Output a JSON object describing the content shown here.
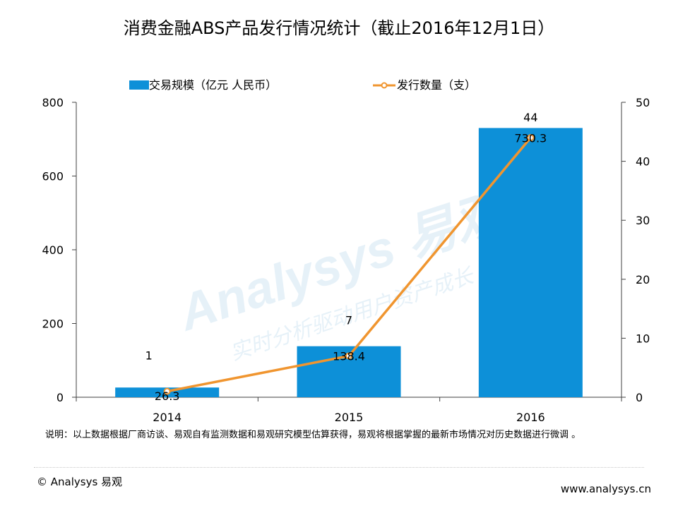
{
  "title": "消费金融ABS产品发行情况统计（截止2016年12月1日）",
  "chart_data": {
    "type": "bar+line",
    "categories": [
      "2014",
      "2015",
      "2016"
    ],
    "series": [
      {
        "name": "交易规模（亿元 人民币）",
        "type": "bar",
        "axis": "left",
        "values": [
          26.3,
          138.4,
          730.3
        ],
        "color": "#0d90d8",
        "labels": [
          "26.3",
          "138.4",
          "730.3"
        ]
      },
      {
        "name": "发行数量（支）",
        "type": "line",
        "axis": "right",
        "values": [
          1,
          7,
          44
        ],
        "color": "#f0952f",
        "labels": [
          "1",
          "7",
          "44"
        ]
      }
    ],
    "y_left": {
      "min": 0,
      "max": 800,
      "ticks": [
        "0",
        "200",
        "400",
        "600",
        "800"
      ]
    },
    "y_right": {
      "min": 0,
      "max": 50,
      "ticks": [
        "0",
        "10",
        "20",
        "30",
        "40",
        "50"
      ]
    },
    "legend": "top",
    "grid": false
  },
  "watermark": {
    "text": "Analysys 易观",
    "subtext": "实时分析驱动用户资产成长"
  },
  "note": "说明：以上数据根据厂商访谈、易观自有监测数据和易观研究模型估算获得，易观将根据掌握的最新市场情况对历史数据进行微调 。",
  "footer": {
    "copyright": "© Analysys 易观",
    "website": "www.analysys.cn"
  }
}
